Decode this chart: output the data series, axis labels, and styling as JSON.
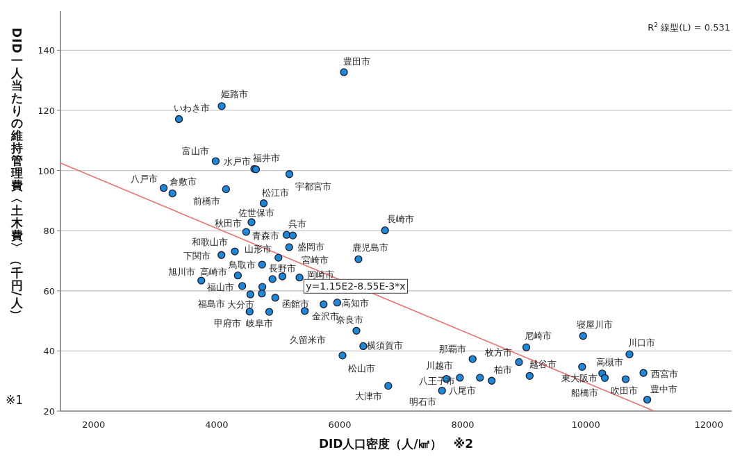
{
  "chart_data": {
    "type": "scatter",
    "xlabel": "DID人口密度（人/㎢）　※2",
    "ylabel": "DID一人当たりの維持管理費〈土木費〉（千円/人）",
    "xlim": [
      1460,
      12370
    ],
    "ylim": [
      20,
      153
    ],
    "xticks": [
      2000,
      4000,
      6000,
      8000,
      10000,
      12000
    ],
    "yticks": [
      20,
      40,
      60,
      80,
      100,
      120,
      140
    ],
    "grid": "y",
    "series": [
      {
        "marker": "circle",
        "color": "#1e88d8",
        "x": [
          6068,
          4081,
          3386,
          3983,
          4611,
          4639,
          5181,
          3138,
          3281,
          4152,
          4764,
          4566,
          6736,
          4479,
          5136,
          5237,
          5178,
          4295,
          4077,
          5004,
          6304,
          4738,
          4344,
          5346,
          5068,
          4907,
          3750,
          4415,
          4742,
          4547,
          4734,
          4952,
          5738,
          5959,
          5432,
          4535,
          4854,
          6271,
          6383,
          6045,
          6789,
          9033,
          9956,
          10710,
          8160,
          8914,
          9940,
          10267,
          10309,
          10937,
          9087,
          10648,
          7734,
          7953,
          8279,
          8470,
          7663,
          10999
        ],
        "values": [
          132.7,
          121.4,
          117.1,
          103.1,
          100.5,
          100.4,
          98.8,
          94.2,
          92.4,
          93.8,
          89.1,
          82.8,
          80.1,
          79.6,
          78.6,
          78.4,
          74.5,
          73.1,
          71.9,
          71.0,
          70.5,
          68.7,
          65.1,
          64.4,
          64.8,
          63.9,
          63.4,
          61.6,
          61.3,
          58.8,
          59.1,
          57.7,
          55.5,
          56.1,
          53.3,
          53.1,
          53.0,
          46.7,
          41.6,
          38.5,
          28.4,
          41.2,
          45.0,
          38.9,
          37.3,
          36.3,
          34.7,
          32.5,
          31.0,
          32.7,
          31.7,
          30.6,
          30.7,
          31.1,
          31.1,
          30.1,
          26.8,
          23.8
        ]
      },
      {
        "type": "line",
        "color": "#e8736f",
        "x": [
          1460,
          11111
        ],
        "values": [
          102.5,
          20
        ]
      }
    ],
    "annotations": [
      "R$^{2}$ 線型(L) = 0.531",
      "※1",
      {
        "text": "y=1.15E2-8.55E-3*x",
        "x": 6259,
        "y": 61.5
      },
      {
        "text": "豊田市",
        "x": 6068,
        "y": 132.7
      },
      {
        "text": "姫路市",
        "x": 4081,
        "y": 121.4
      },
      {
        "text": "いわき市",
        "x": 3386,
        "y": 117.1
      },
      {
        "text": "富山市",
        "x": 3983,
        "y": 103.1
      },
      {
        "text": "水戸市",
        "x": 3983,
        "y": 103.1
      },
      {
        "text": "福井市",
        "x": 4611,
        "y": 100.5
      },
      {
        "text": "宇都宮市",
        "x": 5181,
        "y": 98.8
      },
      {
        "text": "八戸市",
        "x": 3138,
        "y": 94.2
      },
      {
        "text": "倉敷市",
        "x": 3281,
        "y": 92.4
      },
      {
        "text": "前橋市",
        "x": 4152,
        "y": 93.8
      },
      {
        "text": "松江市",
        "x": 4764,
        "y": 89.1
      },
      {
        "text": "佐世保市",
        "x": 4566,
        "y": 82.8
      },
      {
        "text": "秋田市",
        "x": 4566,
        "y": 82.8
      },
      {
        "text": "呉市",
        "x": 5237,
        "y": 78.4
      },
      {
        "text": "長崎市",
        "x": 6736,
        "y": 80.1
      },
      {
        "text": "青森市",
        "x": 4479,
        "y": 79.6
      },
      {
        "text": "和歌山市",
        "x": 4295,
        "y": 73.1
      },
      {
        "text": "山形市",
        "x": 4295,
        "y": 73.1
      },
      {
        "text": "盛岡市",
        "x": 5178,
        "y": 74.5
      },
      {
        "text": "鹿児島市",
        "x": 6304,
        "y": 70.5
      },
      {
        "text": "下関市",
        "x": 4077,
        "y": 71.9
      },
      {
        "text": "鳥取市",
        "x": 4738,
        "y": 68.7
      },
      {
        "text": "宮崎市",
        "x": 5004,
        "y": 71.0
      },
      {
        "text": "旭川市",
        "x": 3750,
        "y": 63.4
      },
      {
        "text": "高崎市",
        "x": 4344,
        "y": 65.1
      },
      {
        "text": "長野市",
        "x": 5068,
        "y": 64.8
      },
      {
        "text": "岡崎市",
        "x": 5346,
        "y": 64.4
      },
      {
        "text": "福山市",
        "x": 4415,
        "y": 61.6
      },
      {
        "text": "福島市",
        "x": 4547,
        "y": 58.8
      },
      {
        "text": "大分市",
        "x": 4734,
        "y": 59.1
      },
      {
        "text": "函館市",
        "x": 4952,
        "y": 57.7
      },
      {
        "text": "高知市",
        "x": 5959,
        "y": 56.1
      },
      {
        "text": "金沢市",
        "x": 5432,
        "y": 53.3
      },
      {
        "text": "甲府市",
        "x": 4535,
        "y": 53.1
      },
      {
        "text": "岐阜市",
        "x": 4854,
        "y": 53.0
      },
      {
        "text": "奈良市",
        "x": 6271,
        "y": 46.7
      },
      {
        "text": "久留米市",
        "x": 6045,
        "y": 38.5
      },
      {
        "text": "横須賀市",
        "x": 6383,
        "y": 41.6
      },
      {
        "text": "松山市",
        "x": 6045,
        "y": 38.5
      },
      {
        "text": "大津市",
        "x": 6789,
        "y": 28.4
      },
      {
        "text": "明石市",
        "x": 7663,
        "y": 26.8
      },
      {
        "text": "那覇市",
        "x": 8160,
        "y": 37.3
      },
      {
        "text": "枚方市",
        "x": 8914,
        "y": 36.3
      },
      {
        "text": "川越市",
        "x": 7953,
        "y": 31.1
      },
      {
        "text": "柏市",
        "x": 8470,
        "y": 30.1
      },
      {
        "text": "越谷市",
        "x": 9087,
        "y": 31.7
      },
      {
        "text": "八王子市",
        "x": 7734,
        "y": 30.7
      },
      {
        "text": "八尾市",
        "x": 7663,
        "y": 26.8
      },
      {
        "text": "尼崎市",
        "x": 9033,
        "y": 41.2
      },
      {
        "text": "寝屋川市",
        "x": 9956,
        "y": 45.0
      },
      {
        "text": "川口市",
        "x": 10710,
        "y": 38.9
      },
      {
        "text": "高槻市",
        "x": 10267,
        "y": 32.5
      },
      {
        "text": "東大阪市",
        "x": 9940,
        "y": 34.7
      },
      {
        "text": "西宮市",
        "x": 10937,
        "y": 32.7
      },
      {
        "text": "船橋市",
        "x": 10309,
        "y": 31.0
      },
      {
        "text": "吹田市",
        "x": 10648,
        "y": 30.6
      },
      {
        "text": "豊中市",
        "x": 10999,
        "y": 23.8
      }
    ]
  }
}
